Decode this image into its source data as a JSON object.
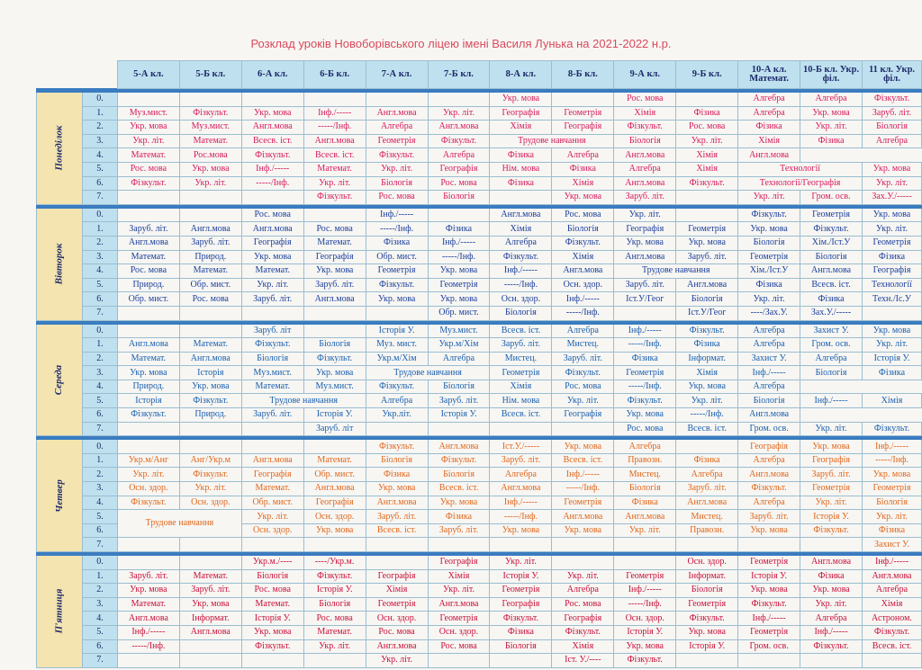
{
  "title": "Розклад уроків Новоборівського ліцею імені Василя Лунька на 2021-2022 н.р.",
  "classes": [
    "5-А кл.",
    "5-Б кл.",
    "6-А кл.",
    "6-Б кл.",
    "7-А кл.",
    "7-Б кл.",
    "8-А кл.",
    "8-Б кл.",
    "9-А кл.",
    "9-Б кл.",
    "10-А кл. Математ.",
    "10-Б кл. Укр. філ.",
    "11 кл. Укр. філ."
  ],
  "colors": {
    "Понеділок": "#d61a5c",
    "Вівторок": "#1b3e9a",
    "Середа": "#1a5fae",
    "Четвер": "#e0671c",
    "П'ятниця": "#c8103a"
  },
  "days": [
    {
      "name": "Понеділок",
      "rows": [
        [
          "0.",
          "",
          "",
          "",
          "",
          "",
          "",
          "Укр. мова",
          "",
          "Рос. мова",
          "",
          "Алгебра",
          "Алгебра",
          "Фізкульт."
        ],
        [
          "1.",
          "Муз.мист.",
          "Фізкульт.",
          "Укр. мова",
          "Інф./-----",
          "Англ.мова",
          "Укр. літ.",
          "Географія",
          "Геометрія",
          "Хімія",
          "Фізика",
          "Алгебра",
          "Укр. мова",
          "Заруб. літ."
        ],
        [
          "2.",
          "Укр. мова",
          "Муз.мист.",
          "Англ.мова",
          "-----/Інф.",
          "Алгебра",
          "Англ.мова",
          "Хімія",
          "Географія",
          "Фізкульт.",
          "Рос. мова",
          "Фізика",
          "Укр. літ.",
          "Біологія"
        ],
        [
          "3.",
          "Укр. літ.",
          "Математ.",
          "Всесв. іст.",
          "Англ.мова",
          "Геометрія",
          "Фізкульт.",
          {
            "t": "Трудове навчання",
            "s": 2
          },
          "Біологія",
          "Укр. літ.",
          "Хімія",
          "Фізика",
          "Алгебра"
        ],
        [
          "4.",
          "Математ.",
          "Рос.мова",
          "Фізкульт.",
          "Всесв. іст.",
          "Фізкульт.",
          "Алгебра",
          "Фізика",
          "Алгебра",
          "Англ.мова",
          "Хімія",
          "Англ.мова"
        ],
        [
          "5.",
          "Рос. мова",
          "Укр. мова",
          "Інф./-----",
          "Математ.",
          "Укр. літ.",
          "Географія",
          "Нім. мова",
          "Фізика",
          "Алгебра",
          "Хімія",
          {
            "t": "Технології",
            "s": 2
          },
          "Укр. мова"
        ],
        [
          "6.",
          "Фізкульт.",
          "Укр. літ.",
          "-----/Інф.",
          "Укр. літ.",
          "Біологія",
          "Рос. мова",
          "Фізика",
          "Хімія",
          "Англ.мова",
          "Фізкульт.",
          {
            "t": "Технології/Географія",
            "s": 2
          },
          "Укр. літ."
        ],
        [
          "7.",
          "",
          "",
          "",
          "Фізкульт.",
          "Рос. мова",
          "Біологія",
          "",
          "Укр. мова",
          "Заруб. літ.",
          "",
          "Укр. літ.",
          "Гром. осв.",
          "Зах.У./-----"
        ]
      ]
    },
    {
      "name": "Вівторок",
      "rows": [
        [
          "0.",
          "",
          "",
          "Рос. мова",
          "",
          "Інф./-----",
          "",
          "Англ.мова",
          "Рос. мова",
          "Укр. літ.",
          "",
          "Фізкульт.",
          "Геометрія",
          "Укр. мова"
        ],
        [
          "1.",
          "Заруб. літ.",
          "Англ.мова",
          "Англ.мова",
          "Рос. мова",
          "-----/Інф.",
          "Фізика",
          "Хімія",
          "Біологія",
          "Географія",
          "Геометрія",
          "Укр. мова",
          "Фізкульт.",
          "Укр. літ."
        ],
        [
          "2.",
          "Англ.мова",
          "Заруб. літ.",
          "Географія",
          "Математ.",
          "Фізика",
          "Інф./-----",
          "Алгебра",
          "Фізкульт.",
          "Укр. мова",
          "Укр. мова",
          "Біологія",
          "Хім./Іст.У",
          "Геометрія"
        ],
        [
          "3.",
          "Математ.",
          "Природ.",
          "Укр. мова",
          "Географія",
          "Обр. мист.",
          "-----/Інф.",
          "Фізкульт.",
          "Хімія",
          "Англ.мова",
          "Заруб. літ.",
          "Геометрія",
          "Біологія",
          "Фізика"
        ],
        [
          "4.",
          "Рос. мова",
          "Математ.",
          "Математ.",
          "Укр. мова",
          "Геометрія",
          "Укр. мова",
          "Інф./-----",
          "Англ.мова",
          {
            "t": "Трудове навчання",
            "s": 2
          },
          "Хім./Іст.У",
          "Англ.мова",
          "Географія"
        ],
        [
          "5.",
          "Природ.",
          "Обр. мист.",
          "Укр. літ.",
          "Заруб. літ.",
          "Фізкульт.",
          "Геометрія",
          "-----/Інф.",
          "Осн. здор.",
          "Заруб. літ.",
          "Англ.мова",
          "Фізика",
          "Всесв. іст.",
          "Технології"
        ],
        [
          "6.",
          "Обр. мист.",
          "Рос. мова",
          "Заруб. літ.",
          "Англ.мова",
          "Укр. мова",
          "Укр. мова",
          "Осн. здор.",
          "Інф./-----",
          "Іст.У/Геог",
          "Біологія",
          "Укр. літ.",
          "Фізика",
          "Техн./Іс.У"
        ],
        [
          "7.",
          "",
          "",
          "",
          "",
          "",
          "Обр. мист.",
          "Біологія",
          "-----/Інф.",
          "",
          "Іст.У/Геог",
          "----/Зах.У.",
          "Зах.У./-----",
          ""
        ]
      ]
    },
    {
      "name": "Середа",
      "rows": [
        [
          "0.",
          "",
          "",
          "Заруб. літ",
          "",
          "Історія У.",
          "Муз.мист.",
          "Всесв. іст.",
          "Алгебра",
          "Інф./-----",
          "Фізкульт.",
          "Алгебра",
          "Захист У.",
          "Укр. мова"
        ],
        [
          "1.",
          "Англ.мова",
          "Математ.",
          "Фізкульт.",
          "Біологія",
          "Муз. мист.",
          "Укр.м/Хім",
          "Заруб. літ.",
          "Мистец.",
          "-----/Інф.",
          "Фізика",
          "Алгебра",
          "Гром. осв.",
          "Укр. літ."
        ],
        [
          "2.",
          "Математ.",
          "Англ.мова",
          "Біологія",
          "Фізкульт.",
          "Укр.м/Хім",
          "Алгебра",
          "Мистец.",
          "Заруб. літ.",
          "Фізика",
          "Інформат.",
          "Захист У.",
          "Алгебра",
          "Історія У."
        ],
        [
          "3.",
          "Укр. мова",
          "Історія",
          "Муз.мист.",
          "Укр. мова",
          {
            "t": "Трудове навчання",
            "s": 2
          },
          "Геометрія",
          "Фізкульт.",
          "Геометрія",
          "Хімія",
          "Інф./-----",
          "Біологія",
          "Фізика"
        ],
        [
          "4.",
          "Природ.",
          "Укр. мова",
          "Математ.",
          "Муз.мист.",
          "Фізкульт.",
          "Біологія",
          "Хімія",
          "Рос. мова",
          "-----/Інф.",
          "Укр. мова",
          "Алгебра"
        ],
        [
          "5.",
          "Історія",
          "Фізкульт.",
          {
            "t": "Трудове навчання",
            "s": 2
          },
          "Алгебра",
          "Заруб. літ.",
          "Нім. мова",
          "Укр. літ.",
          "Фізкульт.",
          "Укр. літ.",
          "Біологія",
          "Інф./-----",
          "Хімія"
        ],
        [
          "6.",
          "Фізкульт.",
          "Природ.",
          "Заруб. літ.",
          "Історія У.",
          "Укр.літ.",
          "Історія У.",
          "Всесв. іст.",
          "Географія",
          "Укр. мова",
          "-----/Інф.",
          "Англ.мова"
        ],
        [
          "7.",
          "",
          "",
          "",
          "Заруб. літ",
          "",
          "",
          "",
          "",
          "Рос. мова",
          "Всесв. іст.",
          "Гром. осв.",
          "Укр. літ.",
          "Фізкульт."
        ]
      ]
    },
    {
      "name": "Четвер",
      "rows": [
        [
          "0.",
          "",
          "",
          "",
          "",
          "Фізкульт.",
          "Англ.мова",
          "Іст.У./-----",
          "Укр. мова",
          "Алгебра",
          "",
          "Географія",
          "Укр. мова",
          "Інф./-----"
        ],
        [
          "1.",
          "Укр.м/Анг",
          "Анг/Укр.м",
          "Англ.мова",
          "Математ.",
          "Біологія",
          "Фізкульт.",
          "Заруб. літ.",
          "Всесв. іст.",
          "Правозн.",
          "Фізика",
          "Алгебра",
          "Географія",
          "-----/Інф."
        ],
        [
          "2.",
          "Укр. літ.",
          "Фізкульт.",
          "Географія",
          "Обр. мист.",
          "Фізика",
          "Біологія",
          "Алгебра",
          "Інф./-----",
          "Мистец.",
          "Алгебра",
          "Англ.мова",
          "Заруб. літ.",
          "Укр. мова"
        ],
        [
          "3.",
          "Осн. здор.",
          "Укр. літ.",
          "Математ.",
          "Англ.мова",
          "Укр. мова",
          "Всесв. іст.",
          "Англ.мова",
          "-----/Інф.",
          "Біологія",
          "Заруб. літ.",
          "Фізкульт.",
          "Геометрія",
          "Геометрія"
        ],
        [
          "4.",
          "Фізкульт.",
          "Осн. здор.",
          "Обр. мист.",
          "Географія",
          "Англ.мова",
          "Укр. мова",
          "Інф./-----",
          "Геометрія",
          "Фізика",
          "Англ.мова",
          "Алгебра",
          "Укр. літ.",
          "Біологія"
        ],
        [
          "5.",
          {
            "t": "Трудове навчання",
            "s": 2,
            "r": 2
          },
          "Укр. літ.",
          "Осн. здор.",
          "Заруб. літ.",
          "Фізика",
          "-----/Інф.",
          "Англ.мова",
          "Англ.мова",
          "Мистец.",
          "Заруб. літ.",
          "Історія У.",
          "Укр. літ."
        ],
        [
          "6.",
          "Осн. здор.",
          "Укр. мова",
          "Всесв. іст.",
          "Заруб. літ.",
          "Укр. мова",
          "Укр. мова",
          "Укр. літ.",
          "Правозн.",
          "Укр. мова",
          "Фізкульт.",
          "Фізика"
        ],
        [
          "7.",
          "",
          "",
          "",
          "",
          "",
          "",
          "",
          "",
          "",
          "",
          "",
          "",
          "Захист У."
        ]
      ]
    },
    {
      "name": "П'ятниця",
      "rows": [
        [
          "0.",
          "",
          "",
          "Укр.м./----",
          "----/Укр.м.",
          "",
          "Географія",
          "Укр. літ.",
          "",
          "",
          "Осн. здор.",
          "Геометрія",
          "Англ.мова",
          "Інф./-----"
        ],
        [
          "1.",
          "Заруб. літ.",
          "Математ.",
          "Біологія",
          "Фізкульт.",
          "Географія",
          "Хімія",
          "Історія У.",
          "Укр. літ.",
          "Геометрія",
          "Інформат.",
          "Історія У.",
          "Фізика",
          "Англ.мова"
        ],
        [
          "2.",
          "Укр. мова",
          "Заруб. літ.",
          "Рос. мова",
          "Історія У.",
          "Хімія",
          "Укр. літ.",
          "Геометрія",
          "Алгебра",
          "Інф./-----",
          "Біологія",
          "Укр. мова",
          "Укр. мова",
          "Алгебра"
        ],
        [
          "3.",
          "Математ.",
          "Укр. мова",
          "Математ.",
          "Біологія",
          "Геометрія",
          "Англ.мова",
          "Географія",
          "Рос. мова",
          "-----/Інф.",
          "Геометрія",
          "Фізкульт.",
          "Укр. літ.",
          "Хімія"
        ],
        [
          "4.",
          "Англ.мова",
          "Інформат.",
          "Історія У.",
          "Рос. мова",
          "Осн. здор.",
          "Геометрія",
          "Фізкульт.",
          "Географія",
          "Осн. здор.",
          "Фізкульт.",
          "Інф./-----",
          "Алгебра",
          "Астроном."
        ],
        [
          "5.",
          "Інф./-----",
          "Англ.мова",
          "Укр. мова",
          "Математ.",
          "Рос. мова",
          "Осн. здор.",
          "Фізика",
          "Фізкульт.",
          "Історія У.",
          "Укр. мова",
          "Геометрія",
          "Інф./-----",
          "Фізкульт."
        ],
        [
          "6.",
          "-----/Інф.",
          "",
          "Фізкульт.",
          "Укр. літ.",
          "Англ.мова",
          "Рос. мова",
          "Біологія",
          "Хімія",
          "Укр. мова",
          "Історія У.",
          "Гром. осв.",
          "Фізкульт.",
          "Всесв. іст."
        ],
        [
          "7.",
          "",
          "",
          "",
          "",
          "Укр. літ.",
          "",
          "",
          "Іст. У./----",
          "Фізкульт.",
          "",
          "",
          "",
          ""
        ]
      ]
    }
  ]
}
